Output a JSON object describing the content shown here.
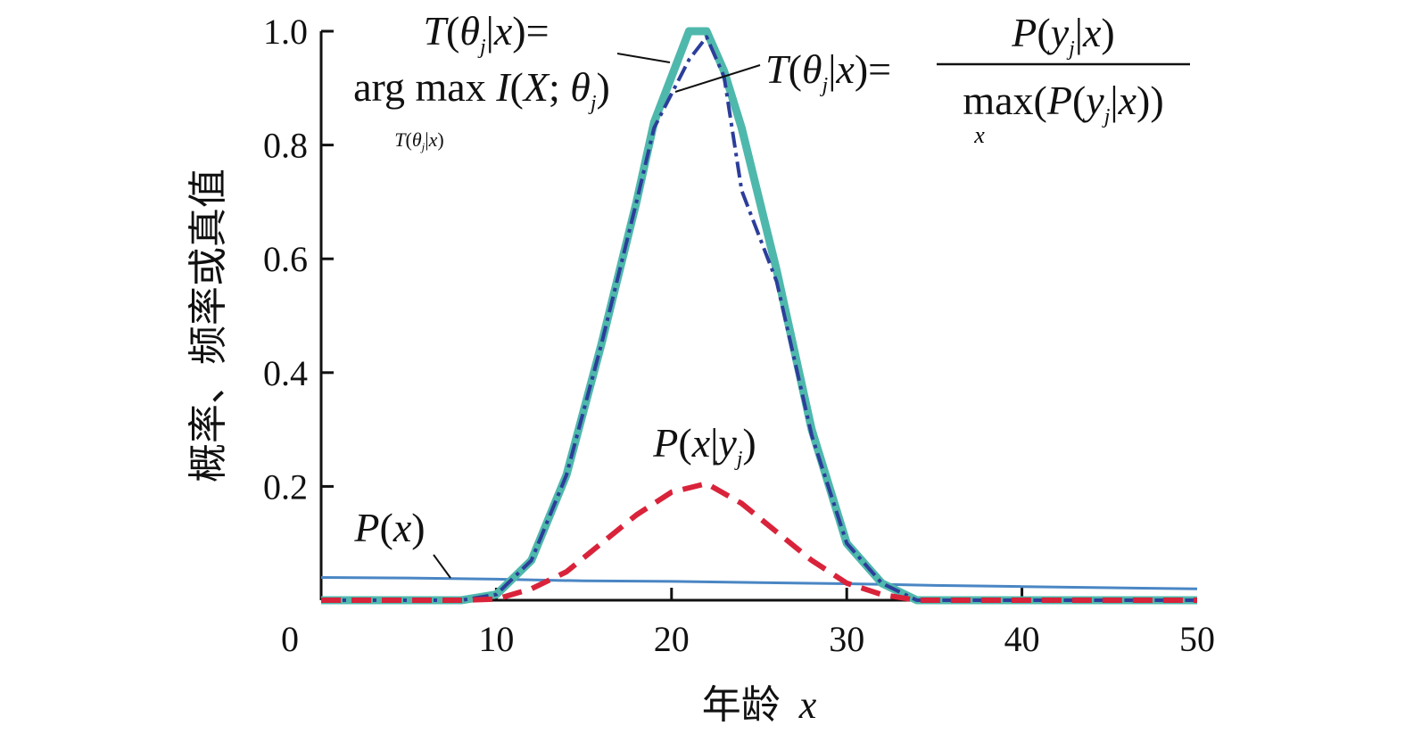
{
  "chart_data": {
    "type": "line",
    "xlabel": "年龄",
    "xlabel_var": "x",
    "ylabel": "概率、频率或真值",
    "xlim": [
      0,
      50
    ],
    "ylim": [
      0,
      1.0
    ],
    "x_ticks": [
      0,
      10,
      20,
      30,
      40,
      50
    ],
    "y_ticks": [
      0.2,
      0.4,
      0.6,
      0.8,
      1.0
    ],
    "x_tick_labels": [
      "0",
      "10",
      "20",
      "30",
      "40",
      "50"
    ],
    "y_tick_labels": [
      "0.2",
      "0.4",
      "0.6",
      "0.8",
      "1.0"
    ],
    "grid": false,
    "series": [
      {
        "key": "P(x)",
        "color": "#4a86c4",
        "style": "solid-thin",
        "x": [
          0,
          5,
          10,
          15,
          20,
          25,
          30,
          35,
          40,
          45,
          50
        ],
        "y": [
          0.04,
          0.039,
          0.037,
          0.034,
          0.033,
          0.031,
          0.029,
          0.026,
          0.024,
          0.022,
          0.02
        ]
      },
      {
        "key": "T_argmax",
        "color": "#4fb8ac",
        "style": "solid-thick",
        "x": [
          0,
          8,
          10,
          12,
          14,
          16,
          18,
          19,
          20,
          21,
          22,
          23,
          24,
          26,
          28,
          30,
          32,
          34,
          36,
          50
        ],
        "y": [
          0,
          0.0,
          0.01,
          0.07,
          0.22,
          0.45,
          0.7,
          0.84,
          0.92,
          1.0,
          1.0,
          0.93,
          0.83,
          0.58,
          0.3,
          0.1,
          0.03,
          0.0,
          0.0,
          0.0
        ]
      },
      {
        "key": "T_norm",
        "color": "#2c3e9a",
        "style": "dashdot",
        "x": [
          0,
          8,
          10,
          12,
          14,
          16,
          18,
          19,
          20,
          21,
          22,
          23,
          24,
          26,
          28,
          30,
          32,
          34,
          36,
          50
        ],
        "y": [
          0,
          0.0,
          0.01,
          0.07,
          0.22,
          0.45,
          0.7,
          0.83,
          0.89,
          0.95,
          0.99,
          0.92,
          0.72,
          0.56,
          0.29,
          0.1,
          0.03,
          0.0,
          0.0,
          0.0
        ]
      },
      {
        "key": "P(x|yj)",
        "color": "#d9233a",
        "style": "dashed",
        "x": [
          0,
          8,
          10,
          12,
          14,
          16,
          18,
          20,
          22,
          24,
          26,
          28,
          30,
          32,
          34,
          36,
          50
        ],
        "y": [
          0,
          0.0,
          0.002,
          0.02,
          0.05,
          0.1,
          0.15,
          0.19,
          0.205,
          0.17,
          0.12,
          0.07,
          0.03,
          0.01,
          0.0,
          0.0,
          0.0
        ]
      }
    ],
    "annotations": {
      "T_argmax_line1": "T(θj|x)=",
      "T_argmax_line2": "arg max I(X; θj)",
      "T_argmax_sub": "T(θj|x)",
      "T_norm_lhs": "T(θj|x)=",
      "T_norm_num": "P(yj|x)",
      "T_norm_den": "max(P(yj|x))",
      "T_norm_den_sub": "x",
      "P_x_label": "P(x)",
      "P_x_given_y_label": "P(x|yj)"
    }
  }
}
